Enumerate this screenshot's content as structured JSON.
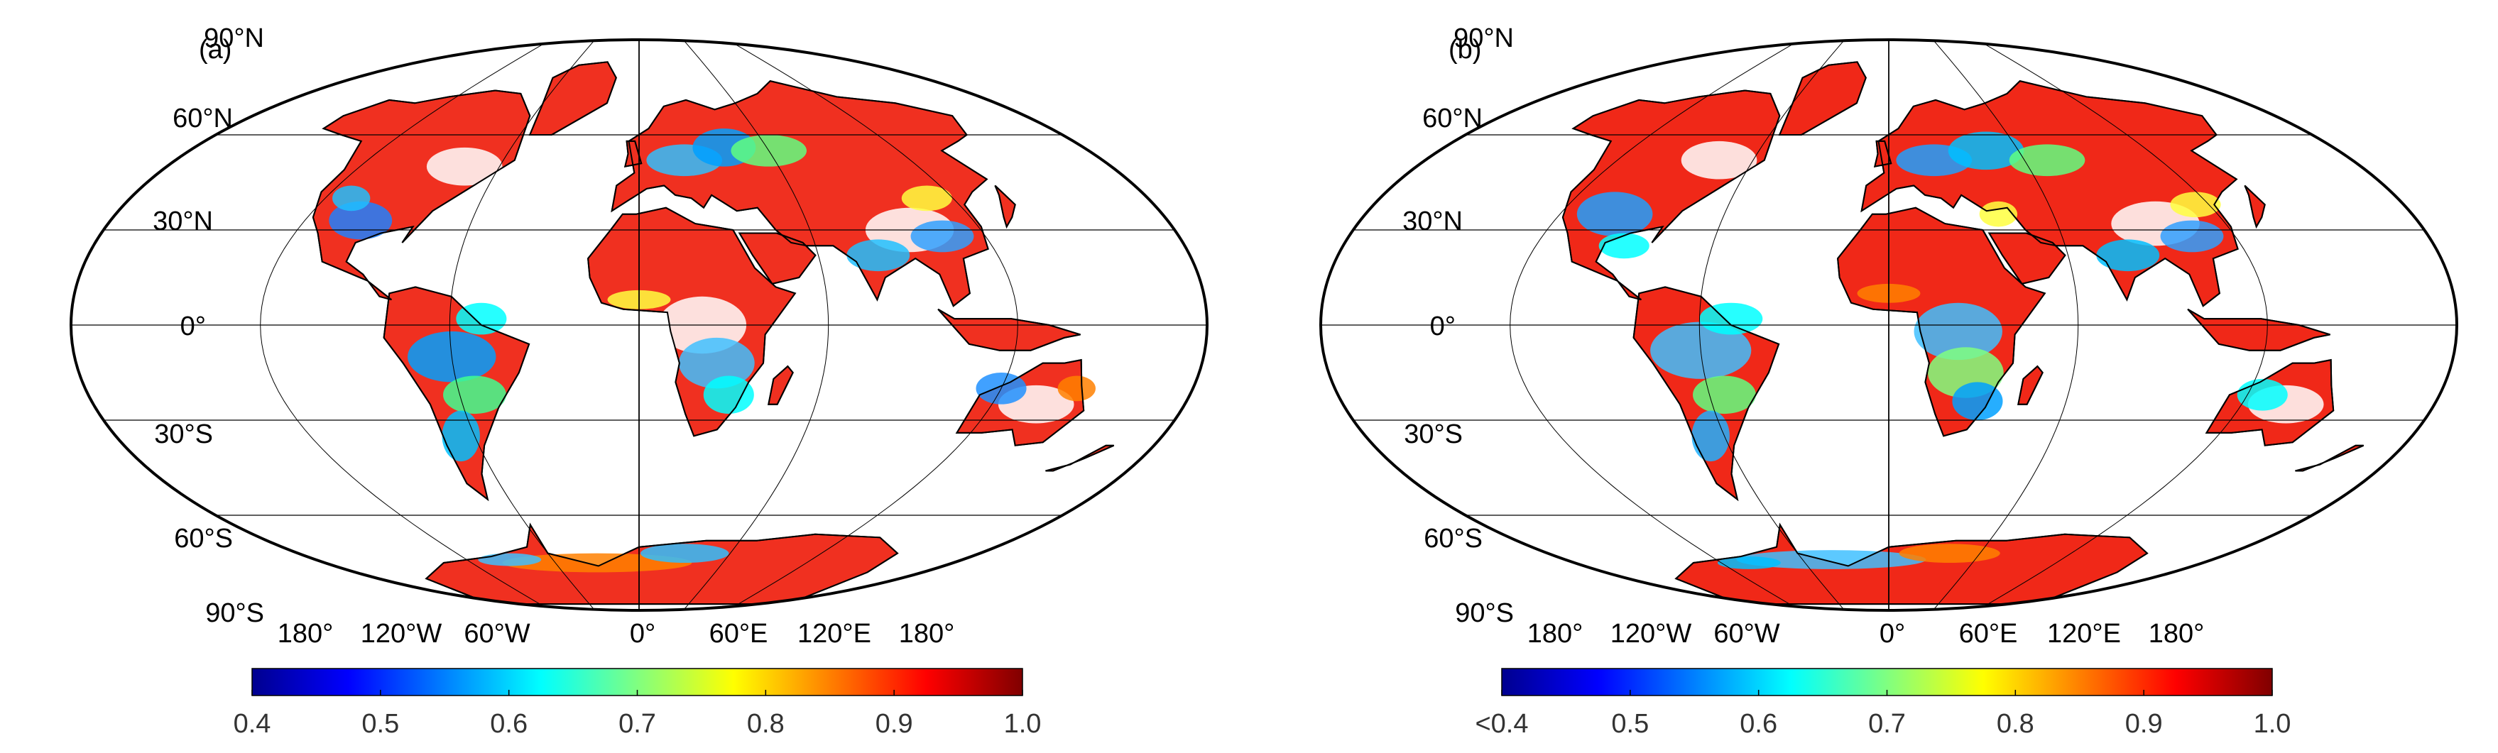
{
  "panels": [
    {
      "id": "a",
      "label": "(a)",
      "lat_labels": [
        "90°N",
        "60°N",
        "30°N",
        "0°",
        "30°S",
        "60°S",
        "90°S"
      ],
      "lon_labels": [
        "180°",
        "120°W",
        "60°W",
        "0°",
        "60°E",
        "120°E",
        "180°"
      ],
      "colorbar": {
        "min": 0.4,
        "max": 1.0,
        "ticks": [
          "0.4",
          "0.5",
          "0.6",
          "0.7",
          "0.8",
          "0.9",
          "1.0"
        ]
      }
    },
    {
      "id": "b",
      "label": "(b)",
      "lat_labels": [
        "90°N",
        "60°N",
        "30°N",
        "0°",
        "30°S",
        "60°S",
        "90°S"
      ],
      "lon_labels": [
        "180°",
        "120°W",
        "60°W",
        "0°",
        "60°E",
        "120°E",
        "180°"
      ],
      "colorbar": {
        "min": 0.4,
        "max": 1.0,
        "ticks": [
          "<0.4",
          "0.5",
          "0.6",
          "0.7",
          "0.8",
          "0.9",
          "1.0"
        ]
      }
    }
  ],
  "colors": {
    "colormap": [
      "#00008f",
      "#0000ff",
      "#0080ff",
      "#00ffff",
      "#80ff80",
      "#ffff00",
      "#ff8000",
      "#ff0000",
      "#800000"
    ],
    "land_dominant_a": "#f03020",
    "land_dominant_b": "#f02818",
    "outline": "#000000",
    "grid": "#000000"
  }
}
